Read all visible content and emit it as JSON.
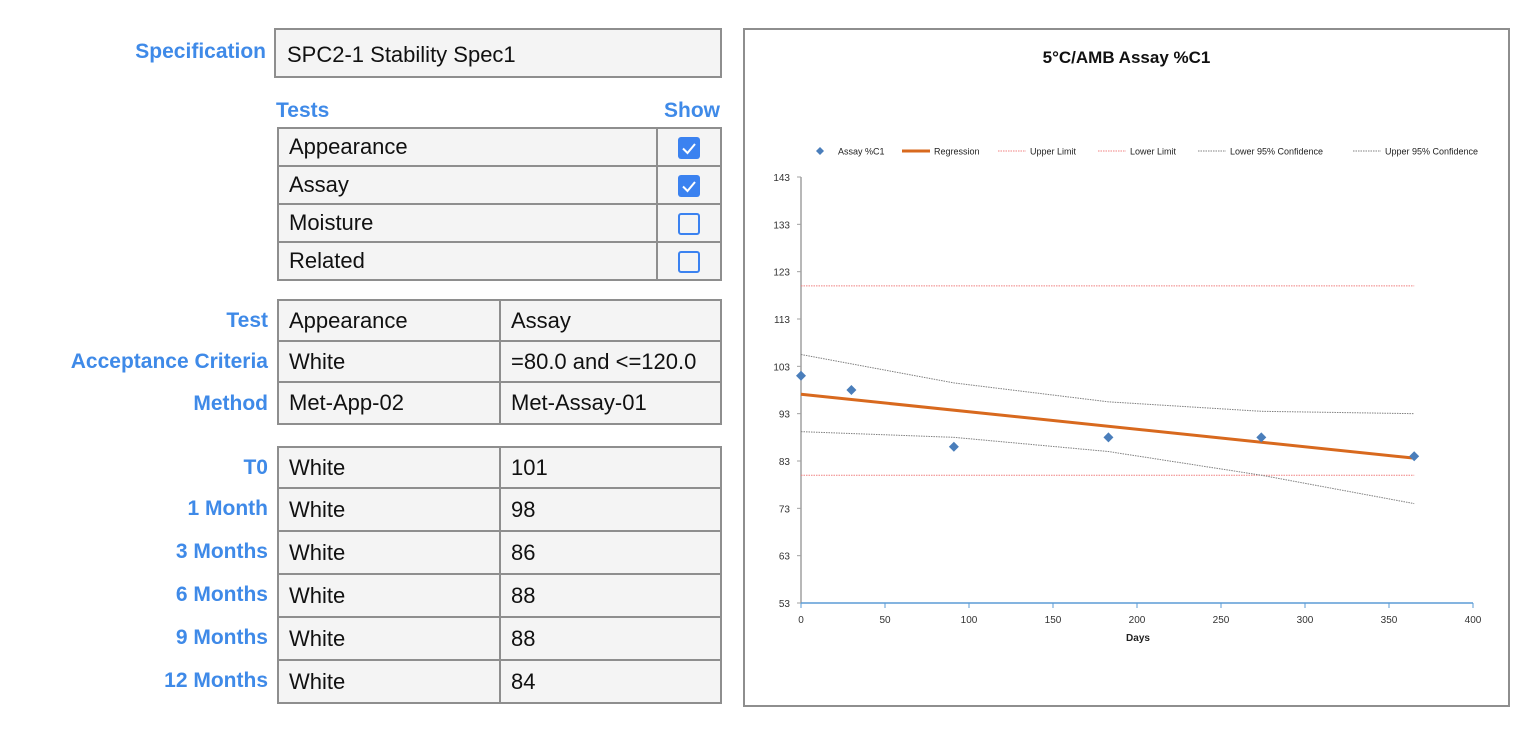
{
  "specification": {
    "label": "Specification",
    "value": "SPC2-1 Stability Spec1"
  },
  "tests_panel": {
    "header_tests": "Tests",
    "header_show": "Show",
    "items": [
      {
        "name": "Appearance",
        "show": true
      },
      {
        "name": "Assay",
        "show": true
      },
      {
        "name": "Moisture",
        "show": false
      },
      {
        "name": "Related",
        "show": false
      }
    ]
  },
  "details": {
    "rows": [
      {
        "label": "Test",
        "col1": "Appearance",
        "col2": "Assay"
      },
      {
        "label": "Acceptance Criteria",
        "col1": "White",
        "col2": "=80.0 and <=120.0"
      },
      {
        "label": "Method",
        "col1": "Met-App-02",
        "col2": "Met-Assay-01"
      }
    ]
  },
  "results": {
    "rows": [
      {
        "label": "T0",
        "col1": "White",
        "col2": "101"
      },
      {
        "label": "1 Month",
        "col1": "White",
        "col2": "98"
      },
      {
        "label": "3 Months",
        "col1": "White",
        "col2": "86"
      },
      {
        "label": "6 Months",
        "col1": "White",
        "col2": "88"
      },
      {
        "label": "9 Months",
        "col1": "White",
        "col2": "88"
      },
      {
        "label": "12 Months",
        "col1": "White",
        "col2": "84"
      }
    ]
  },
  "colors": {
    "label_blue": "#3f8ae8",
    "checkbox_blue": "#3b82f0",
    "series_blue": "#4a7ebb",
    "regression": "#d8691e",
    "limit": "#f08080",
    "confidence": "#808080",
    "x_axis": "#5b9bd5"
  },
  "chart_data": {
    "type": "scatter",
    "title": "5°C/AMB  Assay %C1",
    "xlabel": "Days",
    "ylabel": "",
    "xlim": [
      0,
      400
    ],
    "ylim": [
      53,
      143
    ],
    "x_ticks": [
      "0",
      "50",
      "100",
      "150",
      "200",
      "250",
      "300",
      "350",
      "400"
    ],
    "y_ticks": [
      "143",
      "133",
      "123",
      "113",
      "103",
      "93",
      "83",
      "73",
      "63",
      "53"
    ],
    "grid": false,
    "legend_position": "top",
    "legend": [
      "Assay %C1",
      "Regression",
      "Upper Limit",
      "Lower Limit",
      "Lower 95% Confidence",
      "Upper 95% Confidence"
    ],
    "series": [
      {
        "name": "Assay %C1",
        "type": "scatter",
        "x": [
          0,
          30,
          91,
          183,
          274,
          365
        ],
        "y": [
          101,
          98,
          86,
          88,
          88,
          84
        ]
      },
      {
        "name": "Regression",
        "type": "line",
        "x": [
          0,
          365
        ],
        "y": [
          97.1,
          83.6
        ]
      },
      {
        "name": "Upper Limit",
        "type": "line",
        "x": [
          0,
          365
        ],
        "y": [
          120,
          120
        ]
      },
      {
        "name": "Lower Limit",
        "type": "line",
        "x": [
          0,
          365
        ],
        "y": [
          80,
          80
        ]
      },
      {
        "name": "Lower 95% Confidence",
        "type": "line",
        "x": [
          0,
          91,
          183,
          274,
          365
        ],
        "y": [
          89.2,
          88.0,
          85.0,
          80.0,
          74.0
        ]
      },
      {
        "name": "Upper 95% Confidence",
        "type": "line",
        "x": [
          0,
          91,
          183,
          274,
          365
        ],
        "y": [
          105.5,
          99.5,
          95.5,
          93.5,
          93.0
        ]
      }
    ]
  }
}
